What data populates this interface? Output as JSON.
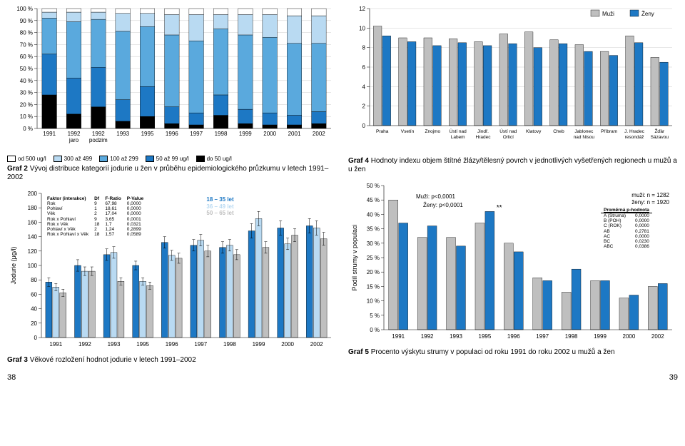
{
  "palette": {
    "white": "#ffffff",
    "lightblue": "#b9daf2",
    "medblue": "#5aa9dd",
    "blue": "#1d78c4",
    "black": "#000000",
    "gray": "#bfbfbf",
    "grid": "#cccccc",
    "text": "#000000"
  },
  "chart2": {
    "title": "Graf 2",
    "subtitle": "Vývoj distribuce kategorií jodurie u žen v průběhu epidemiologického průzkumu v letech 1991–2002",
    "categories": [
      "1991",
      "1992\njaro",
      "1992\npodzim",
      "1993",
      "1995",
      "1996",
      "1997",
      "1998",
      "1999",
      "2000",
      "2001",
      "2002"
    ],
    "legend": [
      {
        "label": "od 500 ug/l",
        "color": "#ffffff"
      },
      {
        "label": "300 až 499",
        "color": "#b9daf2"
      },
      {
        "label": "100 až 299",
        "color": "#5aa9dd"
      },
      {
        "label": "50 až 99 ug/l",
        "color": "#1d78c4"
      },
      {
        "label": "do 50 ug/l",
        "color": "#000000"
      }
    ],
    "y_ticks": [
      0,
      10,
      20,
      30,
      40,
      50,
      60,
      70,
      80,
      90,
      100
    ],
    "y_suffix": " %",
    "series_order": [
      "do50",
      "50_99",
      "100_299",
      "300_499",
      "od500"
    ],
    "colors": {
      "do50": "#000000",
      "50_99": "#1d78c4",
      "100_299": "#5aa9dd",
      "300_499": "#b9daf2",
      "od500": "#ffffff"
    },
    "data": [
      {
        "do50": 28,
        "50_99": 34,
        "100_299": 30,
        "300_499": 5,
        "od500": 3
      },
      {
        "do50": 12,
        "50_99": 30,
        "100_299": 47,
        "300_499": 8,
        "od500": 3
      },
      {
        "do50": 18,
        "50_99": 33,
        "100_299": 40,
        "300_499": 6,
        "od500": 3
      },
      {
        "do50": 6,
        "50_99": 18,
        "100_299": 57,
        "300_499": 15,
        "od500": 4
      },
      {
        "do50": 10,
        "50_99": 25,
        "100_299": 50,
        "300_499": 11,
        "od500": 4
      },
      {
        "do50": 4,
        "50_99": 14,
        "100_299": 60,
        "300_499": 17,
        "od500": 5
      },
      {
        "do50": 3,
        "50_99": 10,
        "100_299": 60,
        "300_499": 22,
        "od500": 5
      },
      {
        "do50": 11,
        "50_99": 17,
        "100_299": 55,
        "300_499": 12,
        "od500": 5
      },
      {
        "do50": 4,
        "50_99": 12,
        "100_299": 62,
        "300_499": 17,
        "od500": 5
      },
      {
        "do50": 3,
        "50_99": 10,
        "100_299": 63,
        "300_499": 19,
        "od500": 5
      },
      {
        "do50": 3,
        "50_99": 8,
        "100_299": 60,
        "300_499": 23,
        "od500": 6
      },
      {
        "do50": 4,
        "50_99": 10,
        "100_299": 57,
        "300_499": 23,
        "od500": 6
      }
    ]
  },
  "chart3": {
    "title": "Graf 3",
    "subtitle": "Věkové rozložení hodnot jodurie v letech 1991–2002",
    "y_label": "Jodurie (μg/l)",
    "y_ticks": [
      0,
      20,
      40,
      60,
      80,
      100,
      120,
      140,
      160,
      180,
      200
    ],
    "categories": [
      "1991",
      "1992",
      "1993",
      "1995",
      "1996",
      "1997",
      "1998",
      "1999",
      "2000",
      "2002"
    ],
    "age_groups": [
      {
        "label": "18 – 35 let",
        "color": "#1d78c4"
      },
      {
        "label": "36 – 49 let",
        "color": "#b9daf2"
      },
      {
        "label": "50 – 65 let",
        "color": "#bfbfbf"
      }
    ],
    "data": [
      {
        "g": [
          77,
          70,
          62
        ],
        "err": [
          6,
          5,
          5
        ]
      },
      {
        "g": [
          100,
          92,
          92
        ],
        "err": [
          8,
          6,
          6
        ]
      },
      {
        "g": [
          115,
          118,
          78
        ],
        "err": [
          8,
          8,
          5
        ]
      },
      {
        "g": [
          100,
          78,
          72
        ],
        "err": [
          6,
          5,
          5
        ]
      },
      {
        "g": [
          132,
          114,
          110
        ],
        "err": [
          8,
          7,
          7
        ]
      },
      {
        "g": [
          128,
          135,
          120
        ],
        "err": [
          8,
          8,
          8
        ]
      },
      {
        "g": [
          125,
          128,
          115
        ],
        "err": [
          8,
          8,
          7
        ]
      },
      {
        "g": [
          148,
          165,
          125
        ],
        "err": [
          10,
          10,
          8
        ]
      },
      {
        "g": [
          152,
          130,
          142
        ],
        "err": [
          10,
          8,
          9
        ]
      },
      {
        "g": [
          155,
          152,
          137
        ],
        "err": [
          10,
          10,
          9
        ]
      }
    ],
    "stats": {
      "header": [
        "Faktor (interakce)",
        "Df",
        "F-Ratio",
        "P-Value"
      ],
      "rows": [
        [
          "Rok",
          "9",
          "67,98",
          "0,0000"
        ],
        [
          "Pohlaví",
          "1",
          "18,61",
          "0,0000"
        ],
        [
          "Věk",
          "2",
          "17,04",
          "0,0000"
        ],
        [
          "Rok x Pohlaví",
          "9",
          "3,65",
          "0,0001"
        ],
        [
          "Rok x Věk",
          "18",
          "1,7",
          "0,0321"
        ],
        [
          "Pohlaví x Věk",
          "2",
          "1,24",
          "0,2899"
        ],
        [
          "Rok x Pohlaví x Věk",
          "18",
          "1,57",
          "0,0589"
        ]
      ]
    }
  },
  "chart4": {
    "title": "Graf 4",
    "subtitle": "Hodnoty indexu objem štítné žlázy/tělesný povrch v jednotlivých vyšetřených regionech u mužů a u žen",
    "y_ticks": [
      0,
      2,
      4,
      6,
      8,
      10,
      12
    ],
    "legend": [
      {
        "label": "Muži",
        "color": "#bfbfbf"
      },
      {
        "label": "Ženy",
        "color": "#1d78c4"
      }
    ],
    "categories": [
      "Praha",
      "Vsetín",
      "Znojmo",
      "Ústí nad\nLabem",
      "Jindř.\nHradec",
      "Ústí nad\nOrlicí",
      "Klatovy",
      "Cheb",
      "Jablonec\nnad Nisou",
      "Příbram",
      "J. Hradec\nresondáž",
      "Žďár\nSázavou"
    ],
    "data": [
      {
        "m": 10.2,
        "z": 9.2
      },
      {
        "m": 9.0,
        "z": 8.6
      },
      {
        "m": 9.0,
        "z": 8.2
      },
      {
        "m": 8.9,
        "z": 8.5
      },
      {
        "m": 8.6,
        "z": 8.2
      },
      {
        "m": 9.4,
        "z": 8.4
      },
      {
        "m": 9.6,
        "z": 8.0
      },
      {
        "m": 8.8,
        "z": 8.4
      },
      {
        "m": 8.3,
        "z": 7.6
      },
      {
        "m": 7.6,
        "z": 7.2
      },
      {
        "m": 9.2,
        "z": 8.5
      },
      {
        "m": 7.0,
        "z": 6.5
      }
    ]
  },
  "chart5": {
    "title": "Graf 5",
    "subtitle": "Procento výskytu strumy v populaci od roku 1991 do roku 2002 u mužů a žen",
    "y_label": "Podíl strumy v populaci",
    "y_ticks": [
      0,
      5,
      10,
      15,
      20,
      25,
      30,
      35,
      40,
      45,
      50
    ],
    "y_suffix": " %",
    "categories": [
      "1991",
      "1992",
      "1993",
      "1995",
      "1996",
      "1997",
      "1998",
      "1999",
      "2000",
      "2002"
    ],
    "legend": [
      {
        "label": "Muži",
        "color": "#bfbfbf"
      },
      {
        "label": "Ženy",
        "color": "#1d78c4"
      }
    ],
    "annot": {
      "muzi_p": "Muži: p<0,0001",
      "zeny_p": "Ženy: p<0,0001",
      "muzi_n": "muži: n = 1282",
      "zeny_n": "ženy: n = 1920",
      "star": "**",
      "ptable_header": "Proměrná p-hodnota",
      "ptable": [
        [
          "A (Struma)",
          "0,0000"
        ],
        [
          "B (POH)",
          "0,0000"
        ],
        [
          "C (ROK)",
          "0,0000"
        ],
        [
          "AB",
          "0,2781"
        ],
        [
          "AC",
          "0,0000"
        ],
        [
          "BC",
          "0,0230"
        ],
        [
          "ABC",
          "0,0386"
        ]
      ]
    },
    "data": [
      {
        "m": 45,
        "z": 37
      },
      {
        "m": 32,
        "z": 36
      },
      {
        "m": 32,
        "z": 29
      },
      {
        "m": 37,
        "z": 41
      },
      {
        "m": 30,
        "z": 27
      },
      {
        "m": 18,
        "z": 17
      },
      {
        "m": 13,
        "z": 21
      },
      {
        "m": 17,
        "z": 17
      },
      {
        "m": 11,
        "z": 12
      },
      {
        "m": 15,
        "z": 16
      }
    ]
  },
  "page_left": "38",
  "page_right": "39"
}
